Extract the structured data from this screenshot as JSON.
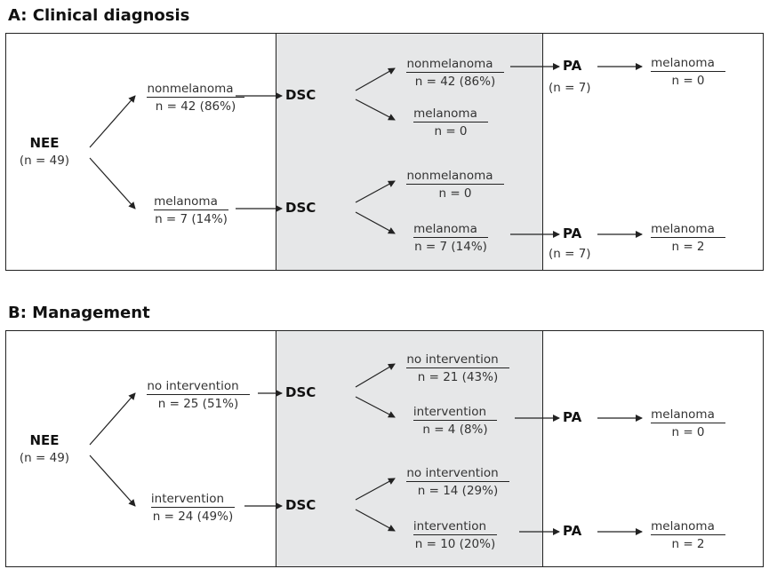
{
  "panelA": {
    "title": "A: Clinical diagnosis",
    "root": {
      "label": "NEE",
      "count": "(n = 49)"
    },
    "nee_nonmel": {
      "label": "nonmelanoma",
      "count": "n = 42 (86%)"
    },
    "nee_mel": {
      "label": "melanoma",
      "count": "n = 7 (14%)"
    },
    "dsc1": "DSC",
    "dsc2": "DSC",
    "dsc1_nonmel": {
      "label": "nonmelanoma",
      "count": "n = 42 (86%)"
    },
    "dsc1_mel": {
      "label": "melanoma",
      "count": "n = 0"
    },
    "dsc2_nonmel": {
      "label": "nonmelanoma",
      "count": "n = 0"
    },
    "dsc2_mel": {
      "label": "melanoma",
      "count": "n = 7 (14%)"
    },
    "pa1": {
      "label": "PA",
      "count": "(n = 7)"
    },
    "pa2": {
      "label": "PA",
      "count": "(n = 7)"
    },
    "pa1_result": {
      "label": "melanoma",
      "count": "n = 0"
    },
    "pa2_result": {
      "label": "melanoma",
      "count": "n = 2"
    }
  },
  "panelB": {
    "title": "B: Management",
    "root": {
      "label": "NEE",
      "count": "(n = 49)"
    },
    "nee_noint": {
      "label": "no intervention",
      "count": "n = 25 (51%)"
    },
    "nee_int": {
      "label": "intervention",
      "count": "n = 24 (49%)"
    },
    "dsc1": "DSC",
    "dsc2": "DSC",
    "dsc1_noint": {
      "label": "no intervention",
      "count": "n = 21 (43%)"
    },
    "dsc1_int": {
      "label": "intervention",
      "count": "n = 4 (8%)"
    },
    "dsc2_noint": {
      "label": "no intervention",
      "count": "n = 14 (29%)"
    },
    "dsc2_int": {
      "label": "intervention",
      "count": "n = 10 (20%)"
    },
    "pa1": "PA",
    "pa2": "PA",
    "pa1_result": {
      "label": "melanoma",
      "count": "n = 0"
    },
    "pa2_result": {
      "label": "melanoma",
      "count": "n = 2"
    }
  }
}
